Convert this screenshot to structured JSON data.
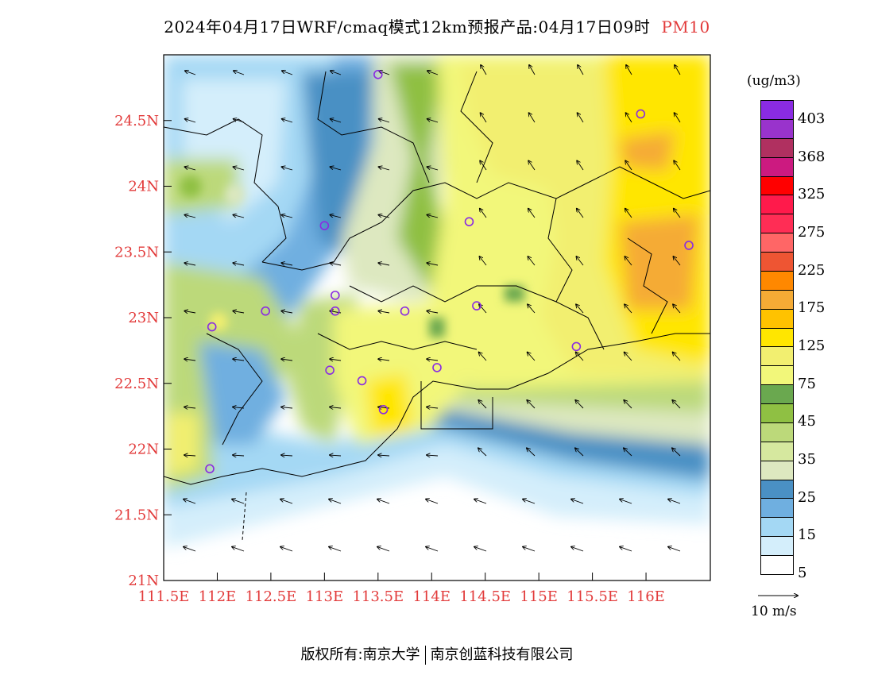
{
  "title": {
    "text": "2024年04月17日WRF/cmaq模式12km预报产品:04月17日09时",
    "variable": "PM10"
  },
  "map": {
    "lat_labels": [
      "24.5N",
      "24N",
      "23.5N",
      "23N",
      "22.5N",
      "22N",
      "21.5N",
      "21N"
    ],
    "lon_labels": [
      "111.5E",
      "112E",
      "112.5E",
      "113E",
      "113.5E",
      "114E",
      "114.5E",
      "115E",
      "115.5E",
      "116E"
    ],
    "lat_range": [
      21,
      25
    ],
    "lon_range": [
      111.5,
      116.6
    ],
    "stations": [
      {
        "lon": 113.5,
        "lat": 24.85
      },
      {
        "lon": 113.0,
        "lat": 23.7
      },
      {
        "lon": 112.45,
        "lat": 23.05
      },
      {
        "lon": 111.95,
        "lat": 22.93
      },
      {
        "lon": 113.1,
        "lat": 23.17
      },
      {
        "lon": 113.1,
        "lat": 23.05
      },
      {
        "lon": 113.75,
        "lat": 23.05
      },
      {
        "lon": 114.35,
        "lat": 23.73
      },
      {
        "lon": 114.42,
        "lat": 23.09
      },
      {
        "lon": 113.05,
        "lat": 22.6
      },
      {
        "lon": 113.35,
        "lat": 22.52
      },
      {
        "lon": 113.55,
        "lat": 22.3
      },
      {
        "lon": 114.05,
        "lat": 22.62
      },
      {
        "lon": 115.35,
        "lat": 22.78
      },
      {
        "lon": 115.95,
        "lat": 24.55
      },
      {
        "lon": 116.4,
        "lat": 23.55
      },
      {
        "lon": 111.93,
        "lat": 21.85
      }
    ]
  },
  "colorbar": {
    "unit": "(ug/m3)",
    "colors": [
      "#8a2be2",
      "#9933cc",
      "#b03060",
      "#cc1a80",
      "#ff0000",
      "#ff1a4b",
      "#ff2d55",
      "#ff6666",
      "#ee5533",
      "#ff8800",
      "#f5ab35",
      "#ffc200",
      "#ffe600",
      "#f2ef70",
      "#f2f77a",
      "#6aa84f",
      "#8fc043",
      "#bcd97a",
      "#d6e89f",
      "#dde8c0",
      "#4a90c4",
      "#6fafe0",
      "#a4d8f4",
      "#d4eefb",
      "#ffffff"
    ],
    "labels": [
      "403",
      "368",
      "325",
      "275",
      "225",
      "175",
      "125",
      "75",
      "45",
      "35",
      "25",
      "15",
      "5"
    ]
  },
  "wind_legend": {
    "label": "10 m/s"
  },
  "footer": {
    "left": "版权所有:南京大学",
    "right": "南京创蓝科技有限公司"
  }
}
